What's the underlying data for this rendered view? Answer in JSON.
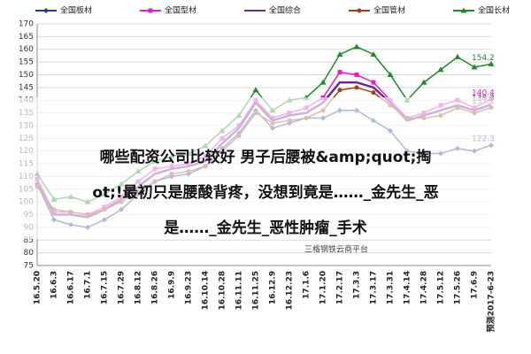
{
  "chart_data": {
    "type": "line",
    "categories": [
      "16.5.20",
      "16.6.3",
      "16.6.17",
      "16.7.1",
      "16.7.15",
      "16.7.29",
      "16.8.12",
      "16.8.26",
      "16.9.9",
      "16.9.23",
      "16.10.14",
      "16.10.28",
      "16.11.11",
      "16.11.25",
      "16.12.9",
      "16.12.23",
      "17.1.6",
      "17.1.20",
      "17.2.17",
      "17.3.3",
      "17.3.17",
      "17.3.31",
      "17.4.14",
      "17.4.28",
      "17.5.12",
      "17.5.26",
      "17.6.9",
      "预测2017-6-23"
    ],
    "series": [
      {
        "name": "全国板材",
        "color": "#1f3d8c",
        "marker": "diamond",
        "values": [
          107,
          93,
          91,
          90,
          93,
          97,
          103,
          108,
          110,
          111,
          114,
          121,
          127,
          136,
          129,
          131,
          133,
          133,
          136,
          136,
          132,
          128,
          120,
          119,
          119,
          121,
          120,
          122.3
        ]
      },
      {
        "name": "全国型材",
        "color": "#e020c8",
        "marker": "square",
        "values": [
          109,
          96,
          96,
          95,
          98,
          102,
          108,
          113,
          114,
          115,
          118,
          125,
          130,
          140,
          133,
          135,
          137,
          141,
          151,
          150,
          147,
          140,
          133,
          135,
          138,
          140,
          137,
          140.4
        ]
      },
      {
        "name": "全国综合",
        "color": "#6a2a8a",
        "marker": "none",
        "values": [
          108,
          95,
          95,
          94,
          97,
          101,
          106,
          111,
          113,
          114,
          116,
          123,
          129,
          139,
          132,
          134,
          135,
          139,
          147,
          147,
          145,
          139,
          132,
          134,
          136,
          138,
          136,
          138.3
        ]
      },
      {
        "name": "全国管材",
        "color": "#a0401a",
        "marker": "circle",
        "values": [
          106,
          97,
          96,
          95,
          97,
          100,
          104,
          108,
          111,
          112,
          114,
          120,
          126,
          135,
          131,
          132,
          133,
          136,
          144,
          145,
          143,
          138,
          133,
          133,
          134,
          137,
          135,
          137.1
        ]
      },
      {
        "name": "全国长材",
        "color": "#1e8a2a",
        "marker": "triangle",
        "values": [
          111,
          101,
          102,
          100,
          103,
          107,
          112,
          116,
          118,
          119,
          122,
          128,
          134,
          144,
          136,
          140,
          141,
          147,
          158,
          161,
          158,
          150,
          140,
          147,
          152,
          157,
          153,
          154.2
        ]
      }
    ],
    "ylim": [
      75,
      170
    ],
    "yticks": [
      75,
      80,
      85,
      90,
      95,
      100,
      105,
      110,
      115,
      120,
      125,
      130,
      135,
      140,
      145,
      150,
      155,
      160,
      165,
      170
    ],
    "grid": true,
    "watermark": "三格钢铁云商平台",
    "annotations": [
      "哪些配资公司比较好 男子后腰被&amp;quot;掏",
      "ot;!最初只是腰酸背疼，没想到竟是……_金先生_恶",
      "是……_金先生_恶性肿瘤_手术"
    ]
  }
}
